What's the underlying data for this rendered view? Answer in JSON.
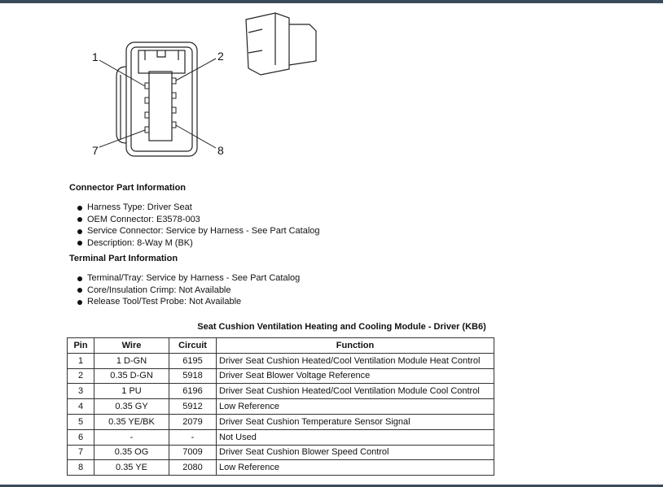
{
  "diagram": {
    "pin_labels": [
      "1",
      "2",
      "7",
      "8"
    ]
  },
  "connector_info": {
    "heading": "Connector Part Information",
    "items": [
      "Harness Type: Driver Seat",
      "OEM Connector: E3578-003",
      "Service Connector: Service by Harness - See Part Catalog",
      "Description: 8-Way M (BK)"
    ]
  },
  "terminal_info": {
    "heading": "Terminal Part Information",
    "items": [
      "Terminal/Tray: Service by Harness - See Part Catalog",
      "Core/Insulation Crimp: Not Available",
      "Release Tool/Test Probe: Not Available"
    ]
  },
  "table": {
    "title": "Seat Cushion Ventilation Heating and Cooling Module - Driver (KB6)",
    "headers": [
      "Pin",
      "Wire",
      "Circuit",
      "Function"
    ],
    "rows": [
      [
        "1",
        "1 D-GN",
        "6195",
        "Driver Seat Cushion Heated/Cool Ventilation Module Heat Control"
      ],
      [
        "2",
        "0.35 D-GN",
        "5918",
        "Driver Seat Blower Voltage Reference"
      ],
      [
        "3",
        "1 PU",
        "6196",
        "Driver Seat Cushion Heated/Cool Ventilation Module Cool Control"
      ],
      [
        "4",
        "0.35 GY",
        "5912",
        "Low Reference"
      ],
      [
        "5",
        "0.35 YE/BK",
        "2079",
        "Driver Seat Cushion Temperature Sensor Signal"
      ],
      [
        "6",
        "-",
        "-",
        "Not Used"
      ],
      [
        "7",
        "0.35 OG",
        "7009",
        "Driver Seat Cushion Blower Speed Control"
      ],
      [
        "8",
        "0.35 YE",
        "2080",
        "Low Reference"
      ]
    ]
  }
}
